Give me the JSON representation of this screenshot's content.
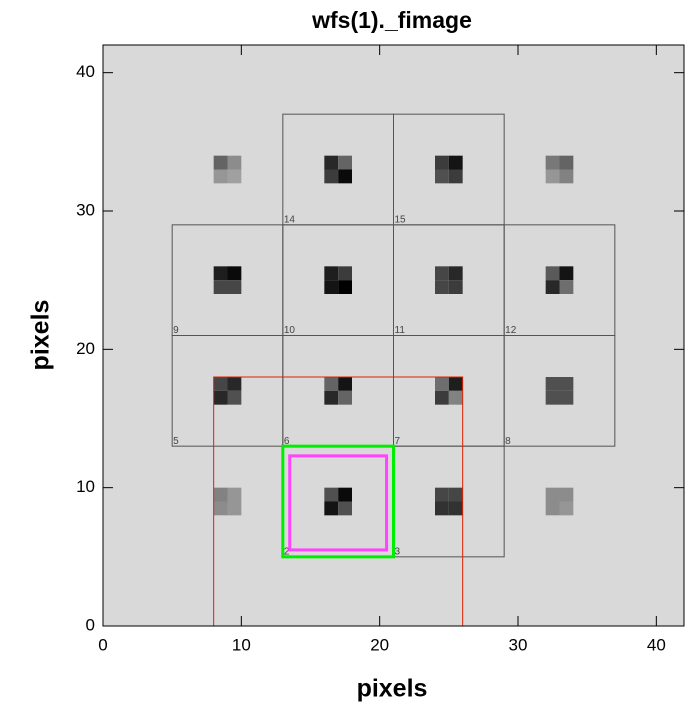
{
  "chart_data": {
    "type": "image",
    "title": "wfs(1)._fimage",
    "xlabel": "pixels",
    "ylabel": "pixels",
    "xlim": [
      0,
      42
    ],
    "ylim": [
      0,
      42
    ],
    "xticks": [
      0,
      10,
      20,
      30,
      40
    ],
    "yticks": [
      0,
      10,
      20,
      30,
      40
    ],
    "spots": [
      {
        "x": 9,
        "y": 33,
        "levels": [
          100,
          140,
          150,
          160
        ]
      },
      {
        "x": 17,
        "y": 33,
        "levels": [
          40,
          100,
          60,
          10
        ]
      },
      {
        "x": 25,
        "y": 33,
        "levels": [
          60,
          20,
          80,
          60
        ]
      },
      {
        "x": 33,
        "y": 33,
        "levels": [
          120,
          100,
          150,
          130
        ]
      },
      {
        "x": 9,
        "y": 25,
        "levels": [
          30,
          10,
          70,
          70
        ]
      },
      {
        "x": 17,
        "y": 25,
        "levels": [
          30,
          60,
          20,
          0
        ]
      },
      {
        "x": 25,
        "y": 25,
        "levels": [
          70,
          40,
          70,
          60
        ]
      },
      {
        "x": 33,
        "y": 25,
        "levels": [
          90,
          20,
          40,
          110
        ]
      },
      {
        "x": 9,
        "y": 17,
        "levels": [
          70,
          40,
          40,
          80
        ]
      },
      {
        "x": 17,
        "y": 17,
        "levels": [
          100,
          20,
          40,
          100
        ]
      },
      {
        "x": 25,
        "y": 17,
        "levels": [
          110,
          30,
          60,
          130
        ]
      },
      {
        "x": 33,
        "y": 17,
        "levels": [
          80,
          80,
          80,
          80
        ]
      },
      {
        "x": 9,
        "y": 9,
        "levels": [
          130,
          150,
          140,
          150
        ]
      },
      {
        "x": 17,
        "y": 9,
        "levels": [
          80,
          10,
          20,
          80
        ]
      },
      {
        "x": 25,
        "y": 9,
        "levels": [
          70,
          70,
          50,
          50
        ]
      },
      {
        "x": 33,
        "y": 9,
        "levels": [
          140,
          140,
          140,
          150
        ]
      }
    ],
    "boxes": [
      {
        "label": "2",
        "x": [
          13,
          21
        ],
        "y": [
          5,
          13
        ]
      },
      {
        "label": "3",
        "x": [
          21,
          29
        ],
        "y": [
          5,
          13
        ]
      },
      {
        "label": "5",
        "x": [
          5,
          13
        ],
        "y": [
          13,
          21
        ]
      },
      {
        "label": "6",
        "x": [
          13,
          21
        ],
        "y": [
          13,
          21
        ]
      },
      {
        "label": "7",
        "x": [
          21,
          29
        ],
        "y": [
          13,
          21
        ]
      },
      {
        "label": "8",
        "x": [
          29,
          37
        ],
        "y": [
          13,
          21
        ]
      },
      {
        "label": "9",
        "x": [
          5,
          13
        ],
        "y": [
          21,
          29
        ]
      },
      {
        "label": "10",
        "x": [
          13,
          21
        ],
        "y": [
          21,
          29
        ]
      },
      {
        "label": "11",
        "x": [
          21,
          29
        ],
        "y": [
          21,
          29
        ]
      },
      {
        "label": "12",
        "x": [
          29,
          37
        ],
        "y": [
          21,
          29
        ]
      },
      {
        "label": "14",
        "x": [
          13,
          21
        ],
        "y": [
          29,
          37
        ]
      },
      {
        "label": "15",
        "x": [
          21,
          29
        ],
        "y": [
          29,
          37
        ]
      }
    ],
    "overlays": [
      {
        "color": "#dd2200",
        "width": 1,
        "x": [
          8,
          26
        ],
        "y": [
          0,
          18
        ]
      },
      {
        "color": "#00ee00",
        "width": 3,
        "x": [
          13,
          21
        ],
        "y": [
          5,
          13
        ]
      },
      {
        "color": "#ff44ff",
        "width": 3,
        "x": [
          13.5,
          20.5
        ],
        "y": [
          5.5,
          12.3
        ]
      }
    ]
  }
}
